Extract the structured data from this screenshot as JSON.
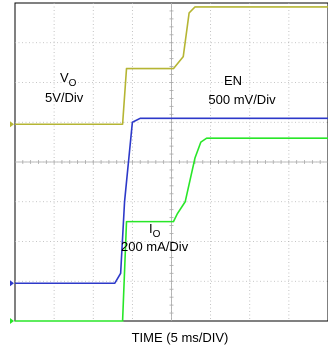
{
  "chart_data": {
    "type": "line",
    "title": "",
    "xlabel": "TIME (5 ms/DIV)",
    "ylabel": "",
    "x_divisions": 8,
    "y_divisions": 8,
    "grid": true,
    "series": [
      {
        "name": "V",
        "name_subscript": "O",
        "scale": "5V/Div",
        "color": "#b5b533",
        "ground_div": 4.95,
        "points": [
          [
            0,
            4.95
          ],
          [
            2.75,
            4.95
          ],
          [
            2.85,
            6.35
          ],
          [
            4.05,
            6.35
          ],
          [
            4.3,
            6.65
          ],
          [
            4.45,
            7.75
          ],
          [
            4.6,
            7.9
          ],
          [
            8,
            7.9
          ]
        ]
      },
      {
        "name": "EN",
        "scale": "500 mV/Div",
        "color": "#2d39c9",
        "ground_div": 0.95,
        "points": [
          [
            0,
            0.95
          ],
          [
            2.55,
            0.95
          ],
          [
            2.7,
            1.2
          ],
          [
            2.8,
            3.0
          ],
          [
            3.0,
            5.0
          ],
          [
            3.2,
            5.1
          ],
          [
            8,
            5.1
          ]
        ]
      },
      {
        "name": "I",
        "name_subscript": "O",
        "scale": "200 mA/Div",
        "color": "#28e628",
        "ground_div": 0.0,
        "points": [
          [
            0,
            0.0
          ],
          [
            2.75,
            0.0
          ],
          [
            2.85,
            2.5
          ],
          [
            4.05,
            2.5
          ],
          [
            4.15,
            2.7
          ],
          [
            4.35,
            3.0
          ],
          [
            4.6,
            4.1
          ],
          [
            4.75,
            4.5
          ],
          [
            4.9,
            4.6
          ],
          [
            8,
            4.6
          ]
        ]
      }
    ]
  }
}
